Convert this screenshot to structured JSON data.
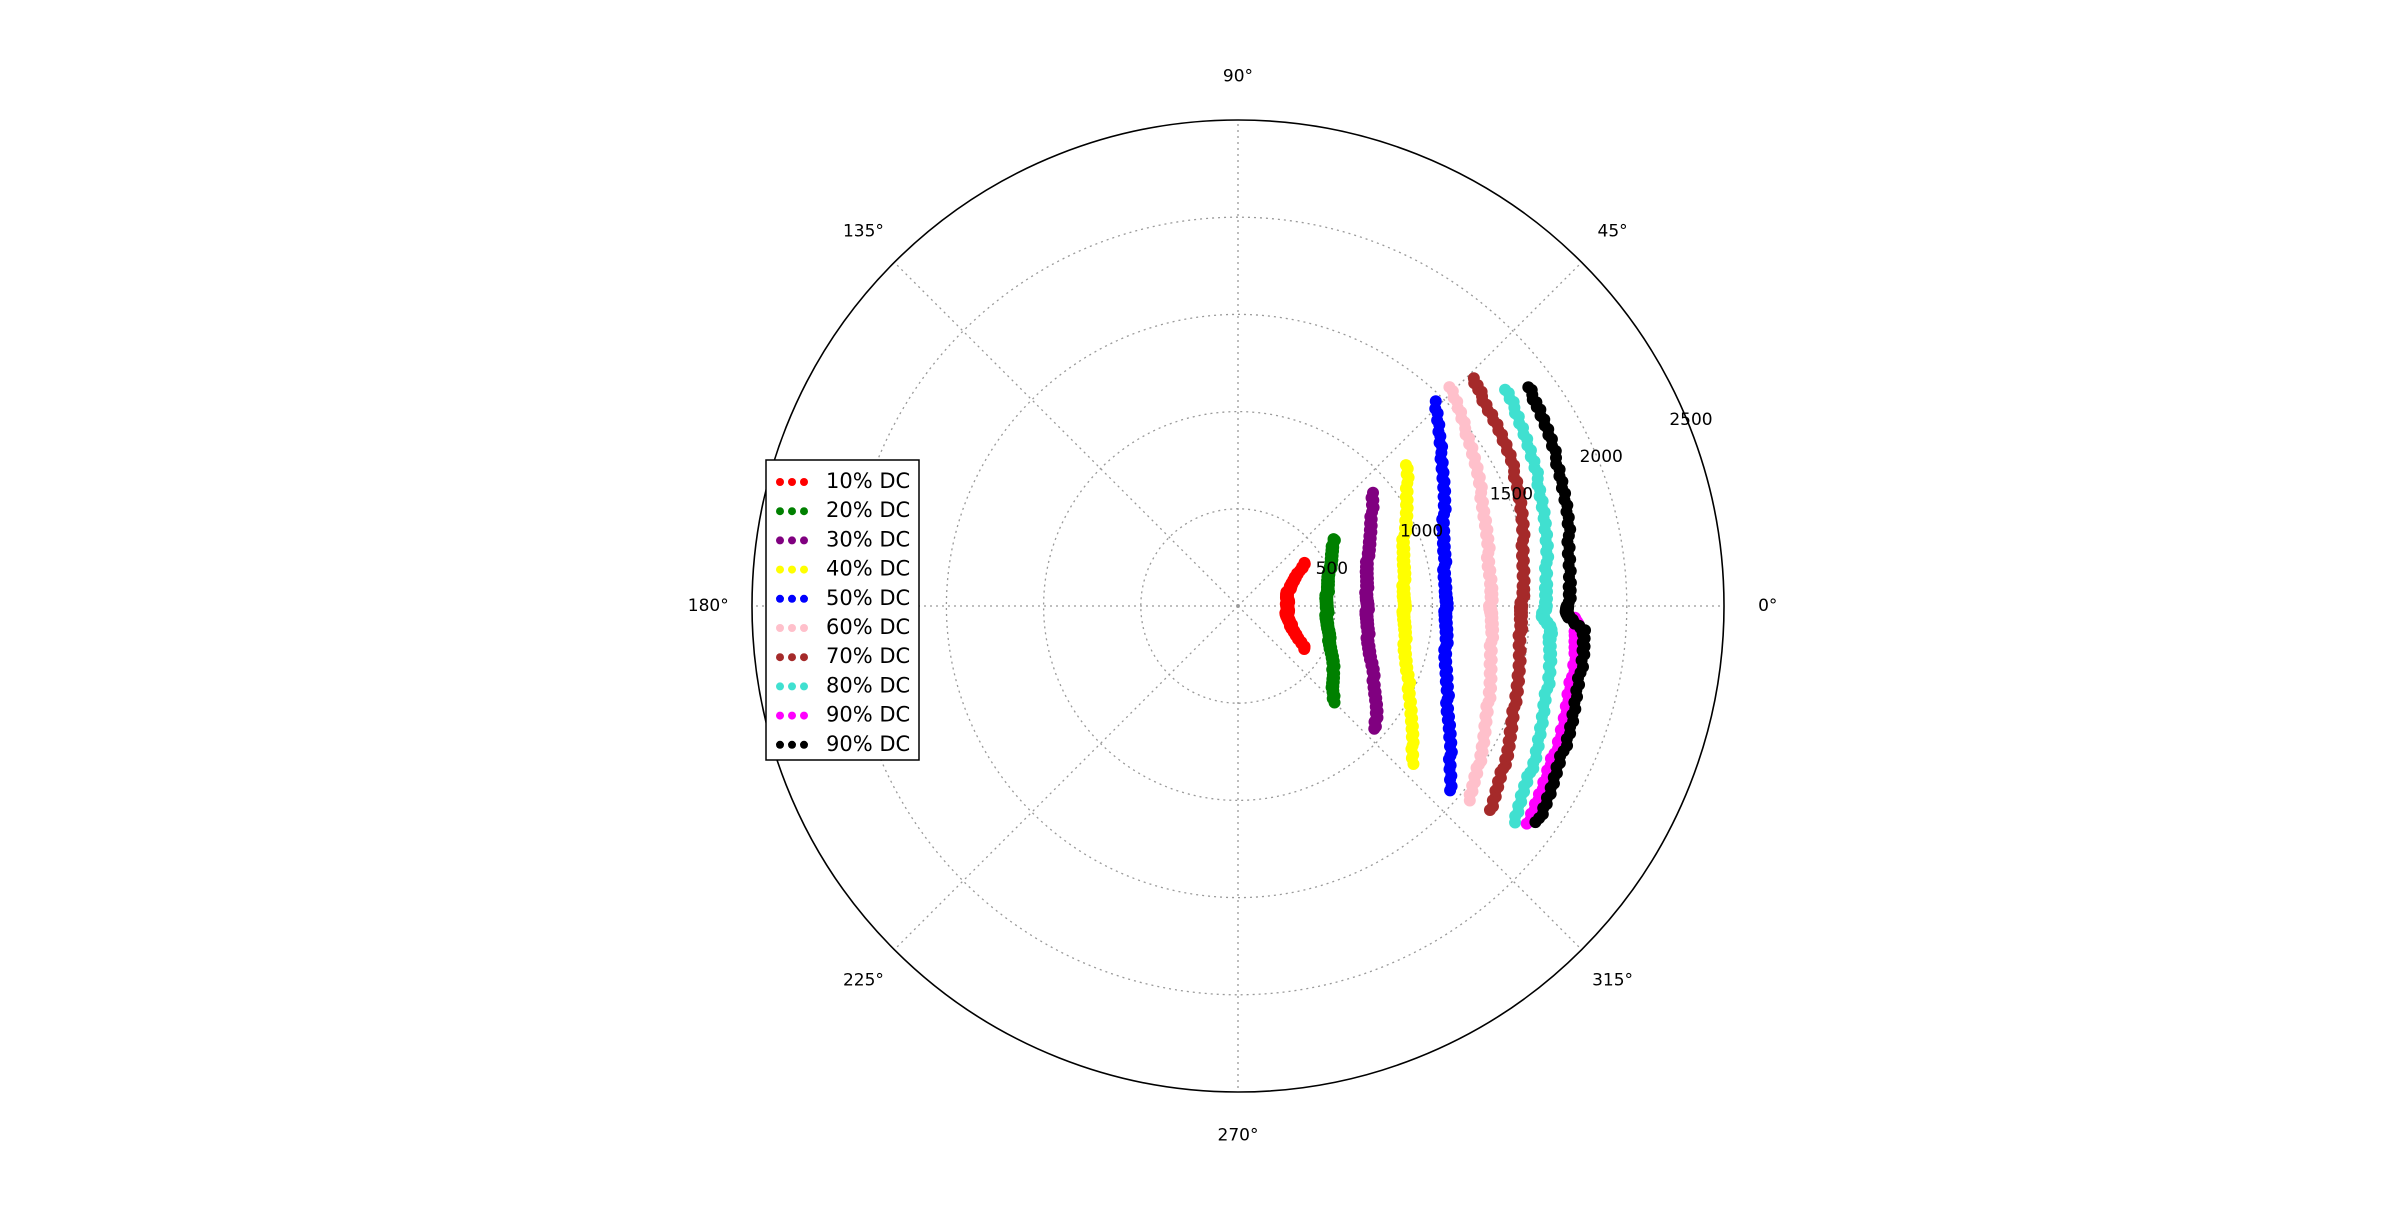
{
  "chart_data": {
    "type": "scatter",
    "projection": "polar",
    "title": "",
    "rlim": [
      0,
      2500
    ],
    "r_ticks": [
      500,
      1000,
      1500,
      2000,
      2500
    ],
    "r_tick_labels": [
      "500",
      "1000",
      "1500",
      "2000",
      "2500"
    ],
    "theta_ticks": [
      0,
      45,
      90,
      135,
      180,
      225,
      270,
      315
    ],
    "theta_tick_labels": [
      "0°",
      "45°",
      "90°",
      "135°",
      "180°",
      "225°",
      "270°",
      "315°"
    ],
    "grid": true,
    "legend_position": "center-left",
    "series": [
      {
        "name": "10% DC",
        "color": "#ff0000",
        "theta_deg": [
          -33,
          -28,
          -22,
          -16,
          -10,
          -5,
          0,
          5,
          10,
          16,
          22,
          28,
          33
        ],
        "r": [
          415,
          345,
          300,
          270,
          255,
          255,
          255,
          255,
          255,
          268,
          295,
          345,
          410
        ]
      },
      {
        "name": "20% DC",
        "color": "#008000",
        "theta_deg": [
          -45,
          -41,
          -36,
          -30,
          -24,
          -18,
          -12,
          -6,
          0,
          6,
          12,
          18,
          24,
          30,
          35
        ],
        "r": [
          700,
          640,
          610,
          560,
          520,
          490,
          470,
          460,
          455,
          460,
          470,
          490,
          520,
          560,
          600
        ]
      },
      {
        "name": "30% DC",
        "color": "#800080",
        "theta_deg": [
          -42,
          -37,
          -32,
          -26,
          -20,
          -14,
          -8,
          -3,
          0,
          4,
          10,
          16,
          22,
          28,
          34,
          40
        ],
        "r": [
          950,
          890,
          830,
          770,
          720,
          690,
          670,
          665,
          665,
          665,
          670,
          690,
          720,
          770,
          830,
          900
        ]
      },
      {
        "name": "40% DC",
        "color": "#ffff00",
        "theta_deg": [
          -42,
          -37,
          -32,
          -26,
          -20,
          -14,
          -8,
          -3,
          0,
          4,
          10,
          16,
          22,
          28,
          34,
          40
        ],
        "r": [
          1210,
          1120,
          1050,
          980,
          920,
          885,
          865,
          855,
          855,
          855,
          865,
          885,
          920,
          980,
          1050,
          1130
        ]
      },
      {
        "name": "50% DC",
        "color": "#0000ff",
        "theta_deg": [
          -41,
          -36,
          -31,
          -26,
          -20,
          -14,
          -8,
          -3,
          0,
          4,
          10,
          16,
          22,
          28,
          34,
          40,
          46
        ],
        "r": [
          1450,
          1350,
          1270,
          1200,
          1140,
          1100,
          1080,
          1070,
          1070,
          1070,
          1080,
          1100,
          1140,
          1200,
          1270,
          1350,
          1460
        ]
      },
      {
        "name": "60% DC",
        "color": "#ffc0cb",
        "theta_deg": [
          -40,
          -35,
          -30,
          -24,
          -18,
          -12,
          -6,
          -2,
          0,
          4,
          10,
          16,
          22,
          28,
          34,
          40,
          46
        ],
        "r": [
          1550,
          1500,
          1450,
          1400,
          1360,
          1330,
          1310,
          1305,
          1300,
          1305,
          1310,
          1330,
          1360,
          1400,
          1450,
          1500,
          1570
        ]
      },
      {
        "name": "70% DC",
        "color": "#a52a2a",
        "theta_deg": [
          -39,
          -34,
          -29,
          -24,
          -18,
          -12,
          -6,
          -2,
          0,
          4,
          10,
          16,
          22,
          28,
          34,
          40,
          44
        ],
        "r": [
          1670,
          1620,
          1580,
          1540,
          1500,
          1480,
          1460,
          1455,
          1460,
          1470,
          1490,
          1520,
          1560,
          1590,
          1620,
          1650,
          1680
        ]
      },
      {
        "name": "80% DC",
        "color": "#40e0d0",
        "theta_deg": [
          -38,
          -33,
          -28,
          -22,
          -16,
          -10,
          -6,
          -4,
          -2,
          0,
          4,
          10,
          16,
          22,
          28,
          34,
          39
        ],
        "r": [
          1800,
          1750,
          1720,
          1680,
          1650,
          1630,
          1615,
          1610,
          1570,
          1580,
          1590,
          1610,
          1640,
          1670,
          1700,
          1740,
          1770
        ]
      },
      {
        "name": "90% DC",
        "color": "#ff00ff",
        "theta_deg": [
          -37,
          -32,
          -26,
          -20,
          -14,
          -8,
          -5,
          -3,
          -2
        ],
        "r": [
          1860,
          1830,
          1800,
          1780,
          1760,
          1750,
          1745,
          1745,
          1730
        ]
      },
      {
        "name": "90% DC",
        "color": "#000000",
        "theta_deg": [
          -36,
          -31,
          -26,
          -20,
          -14,
          -8,
          -4,
          -2,
          -1,
          0,
          4,
          10,
          16,
          22,
          28,
          33,
          37
        ],
        "r": [
          1900,
          1870,
          1840,
          1820,
          1800,
          1790,
          1785,
          1700,
          1690,
          1700,
          1710,
          1730,
          1760,
          1790,
          1820,
          1850,
          1870
        ]
      }
    ]
  }
}
